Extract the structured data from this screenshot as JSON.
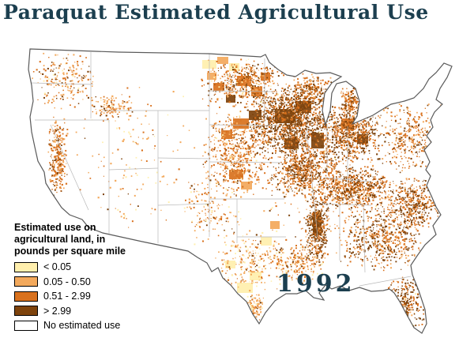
{
  "title": "Paraquat Estimated Agricultural Use",
  "year_label": "1992",
  "legend": {
    "title_lines": [
      "Estimated use on",
      "agricultural land, in",
      "pounds per square mile"
    ],
    "items": [
      {
        "label": "< 0.05",
        "color": "#ffefad"
      },
      {
        "label": "0.05 - 0.50",
        "color": "#f3a95c"
      },
      {
        "label": "0.51 - 2.99",
        "color": "#d9711d"
      },
      {
        "label": "> 2.99",
        "color": "#7e430c"
      },
      {
        "label": "No estimated use",
        "color": "#ffffff"
      }
    ]
  },
  "colors": {
    "title_text": "#1c3f4f",
    "map_outline": "#5a5a5a",
    "state_line": "#b8b8b8",
    "legend_text": "#000000"
  }
}
